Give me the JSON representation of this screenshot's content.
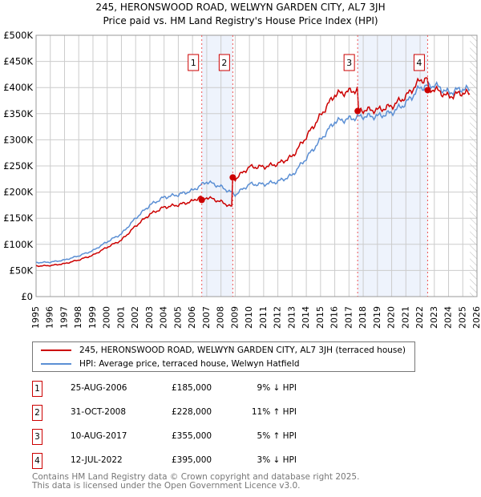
{
  "chart_data": {
    "type": "line",
    "title": "245, HERONSWOOD ROAD, WELWYN GARDEN CITY, AL7 3JH",
    "subtitle": "Price paid vs. HM Land Registry's House Price Index (HPI)",
    "xlim": [
      1995,
      2026
    ],
    "ylim": [
      0,
      500000
    ],
    "y_ticks": [
      0,
      50000,
      100000,
      150000,
      200000,
      250000,
      300000,
      350000,
      400000,
      450000,
      500000
    ],
    "y_tick_labels": [
      "£0",
      "£50K",
      "£100K",
      "£150K",
      "£200K",
      "£250K",
      "£300K",
      "£350K",
      "£400K",
      "£450K",
      "£500K"
    ],
    "x_ticks": [
      1995,
      1996,
      1997,
      1998,
      1999,
      2000,
      2001,
      2002,
      2003,
      2004,
      2005,
      2006,
      2007,
      2008,
      2009,
      2010,
      2011,
      2012,
      2013,
      2014,
      2015,
      2016,
      2017,
      2018,
      2019,
      2020,
      2021,
      2022,
      2023,
      2024,
      2025,
      2026
    ],
    "grid": true,
    "hpi": {
      "name": "HPI: Average price, terraced house, Welwyn Hatfield",
      "color": "#5b8fd4",
      "x": [
        1995,
        1996,
        1997,
        1998,
        1999,
        2000,
        2001,
        2002,
        2003,
        2004,
        2005,
        2006,
        2007,
        2008,
        2009,
        2010,
        2011,
        2012,
        2013,
        2014,
        2015,
        2016,
        2017,
        2018,
        2019,
        2020,
        2021,
        2022,
        2023,
        2024,
        2025,
        2025.5
      ],
      "y": [
        65000,
        66000,
        70000,
        78000,
        88000,
        105000,
        120000,
        150000,
        175000,
        190000,
        195000,
        203000,
        220000,
        210000,
        195000,
        215000,
        215000,
        220000,
        232000,
        265000,
        300000,
        335000,
        340000,
        345000,
        345000,
        352000,
        370000,
        400000,
        405000,
        390000,
        398000,
        395000
      ]
    },
    "property": {
      "name": "245, HERONSWOOD ROAD, WELWYN GARDEN CITY, AL7 3JH (terraced house)",
      "color": "#cc0000"
    },
    "sales": [
      {
        "label": "1",
        "date": "25-AUG-2006",
        "x": 2006.65,
        "price": 185000,
        "price_label": "£185,000",
        "hpi": "9% ↓ HPI"
      },
      {
        "label": "2",
        "date": "31-OCT-2008",
        "x": 2008.83,
        "price": 228000,
        "price_label": "£228,000",
        "hpi": "11% ↑ HPI"
      },
      {
        "label": "3",
        "date": "10-AUG-2017",
        "x": 2017.61,
        "price": 355000,
        "price_label": "£355,000",
        "hpi": "5% ↑ HPI"
      },
      {
        "label": "4",
        "date": "12-JUL-2022",
        "x": 2022.53,
        "price": 395000,
        "price_label": "£395,000",
        "hpi": "3% ↓ HPI"
      }
    ]
  },
  "footer": {
    "line1": "Contains HM Land Registry data © Crown copyright and database right 2025.",
    "line2": "This data is licensed under the Open Government Licence v3.0."
  }
}
